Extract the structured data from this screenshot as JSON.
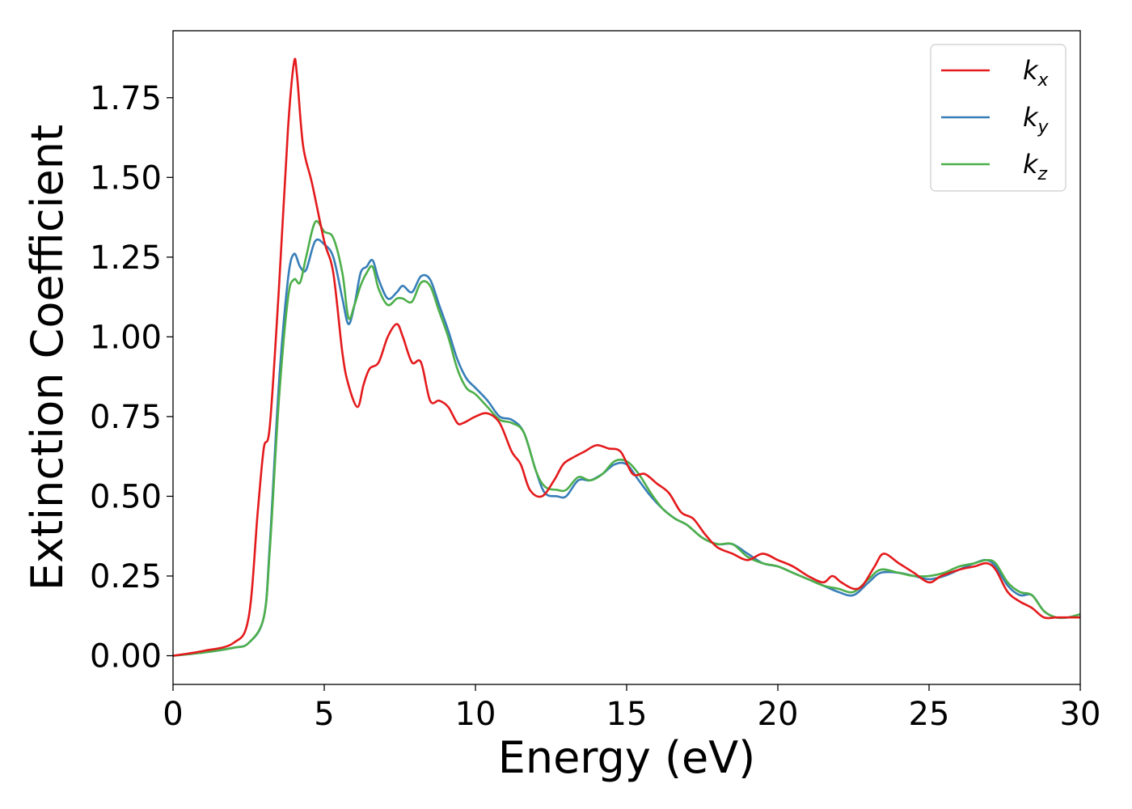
{
  "chart_data": {
    "type": "line",
    "xlabel": "Energy (eV)",
    "ylabel": "Extinction Coefficient",
    "xlim": [
      0,
      30
    ],
    "ylim": [
      -0.09,
      1.96
    ],
    "xticks": [
      0,
      5,
      10,
      15,
      20,
      25,
      30
    ],
    "xtick_labels": [
      "0",
      "5",
      "10",
      "15",
      "20",
      "25",
      "30"
    ],
    "yticks": [
      0.0,
      0.25,
      0.5,
      0.75,
      1.0,
      1.25,
      1.5,
      1.75
    ],
    "ytick_labels": [
      "0.00",
      "0.25",
      "0.50",
      "0.75",
      "1.00",
      "1.25",
      "1.50",
      "1.75"
    ],
    "grid": false,
    "legend_position": "top-right",
    "series": [
      {
        "name": "k_x",
        "label_main": "k",
        "label_sub": "x",
        "color": "#e41a1c",
        "x": [
          0,
          1,
          2,
          2.5,
          2.8,
          3.0,
          3.2,
          3.5,
          3.8,
          4.0,
          4.1,
          4.3,
          4.6,
          5.0,
          5.3,
          5.6,
          5.8,
          6.1,
          6.3,
          6.5,
          6.8,
          7.1,
          7.4,
          7.6,
          7.9,
          8.2,
          8.5,
          8.8,
          9.1,
          9.4,
          9.6,
          10.0,
          10.4,
          10.8,
          11.2,
          11.5,
          11.8,
          12.2,
          12.6,
          12.9,
          13.2,
          13.6,
          14.0,
          14.4,
          14.8,
          15.2,
          15.6,
          16.0,
          16.4,
          16.8,
          17.2,
          17.6,
          18.0,
          18.5,
          19.0,
          19.5,
          20.0,
          20.5,
          21.0,
          21.5,
          21.8,
          22.1,
          22.5,
          22.8,
          23.2,
          23.5,
          24.0,
          24.5,
          25.0,
          25.4,
          26.0,
          26.5,
          26.9,
          27.2,
          27.6,
          28.0,
          28.4,
          28.8,
          29.2,
          29.6,
          30.0
        ],
        "y": [
          0.0,
          0.015,
          0.04,
          0.12,
          0.45,
          0.65,
          0.72,
          1.15,
          1.65,
          1.86,
          1.82,
          1.6,
          1.48,
          1.3,
          1.2,
          0.95,
          0.85,
          0.78,
          0.85,
          0.9,
          0.92,
          1.0,
          1.04,
          1.0,
          0.92,
          0.92,
          0.8,
          0.8,
          0.78,
          0.73,
          0.73,
          0.75,
          0.76,
          0.73,
          0.64,
          0.6,
          0.52,
          0.5,
          0.55,
          0.6,
          0.62,
          0.64,
          0.66,
          0.65,
          0.64,
          0.57,
          0.57,
          0.54,
          0.51,
          0.45,
          0.43,
          0.38,
          0.34,
          0.32,
          0.3,
          0.32,
          0.3,
          0.28,
          0.25,
          0.23,
          0.25,
          0.23,
          0.21,
          0.22,
          0.28,
          0.32,
          0.29,
          0.26,
          0.23,
          0.25,
          0.27,
          0.28,
          0.29,
          0.27,
          0.2,
          0.17,
          0.15,
          0.12,
          0.12,
          0.12,
          0.12
        ]
      },
      {
        "name": "k_y",
        "label_main": "k",
        "label_sub": "y",
        "color": "#377eb8",
        "x": [
          0,
          1,
          2,
          2.5,
          3.0,
          3.2,
          3.5,
          3.8,
          4.0,
          4.2,
          4.4,
          4.7,
          5.0,
          5.3,
          5.6,
          5.8,
          6.0,
          6.2,
          6.4,
          6.6,
          6.8,
          7.1,
          7.4,
          7.6,
          7.9,
          8.2,
          8.5,
          8.8,
          9.1,
          9.4,
          9.7,
          10.0,
          10.4,
          10.8,
          11.2,
          11.6,
          12.0,
          12.3,
          12.7,
          13.0,
          13.4,
          13.8,
          14.2,
          14.6,
          15.0,
          15.4,
          15.8,
          16.2,
          16.6,
          17.0,
          17.5,
          18.0,
          18.5,
          19.0,
          19.5,
          20.0,
          20.5,
          21.0,
          21.5,
          22.0,
          22.5,
          23.0,
          23.4,
          24.0,
          24.5,
          25.0,
          25.5,
          26.0,
          26.5,
          26.9,
          27.2,
          27.6,
          28.0,
          28.4,
          28.8,
          29.2,
          29.6,
          30.0
        ],
        "y": [
          0.0,
          0.01,
          0.025,
          0.04,
          0.12,
          0.35,
          0.85,
          1.18,
          1.26,
          1.22,
          1.21,
          1.3,
          1.29,
          1.25,
          1.12,
          1.04,
          1.1,
          1.2,
          1.22,
          1.24,
          1.18,
          1.12,
          1.14,
          1.16,
          1.14,
          1.19,
          1.18,
          1.1,
          1.02,
          0.93,
          0.87,
          0.84,
          0.8,
          0.75,
          0.74,
          0.7,
          0.58,
          0.51,
          0.5,
          0.5,
          0.55,
          0.55,
          0.57,
          0.6,
          0.6,
          0.55,
          0.5,
          0.46,
          0.43,
          0.41,
          0.37,
          0.35,
          0.35,
          0.32,
          0.29,
          0.28,
          0.26,
          0.24,
          0.22,
          0.2,
          0.19,
          0.23,
          0.26,
          0.26,
          0.25,
          0.24,
          0.25,
          0.27,
          0.29,
          0.3,
          0.28,
          0.22,
          0.19,
          0.19,
          0.14,
          0.12,
          0.12,
          0.13
        ]
      },
      {
        "name": "k_z",
        "label_main": "k",
        "label_sub": "z",
        "color": "#4daf4a",
        "x": [
          0,
          1,
          2,
          2.5,
          3.0,
          3.2,
          3.5,
          3.8,
          4.0,
          4.2,
          4.4,
          4.7,
          5.0,
          5.3,
          5.6,
          5.8,
          6.0,
          6.2,
          6.4,
          6.6,
          6.8,
          7.1,
          7.4,
          7.6,
          7.9,
          8.2,
          8.5,
          8.8,
          9.1,
          9.4,
          9.7,
          10.0,
          10.4,
          10.8,
          11.2,
          11.6,
          12.0,
          12.3,
          12.7,
          13.0,
          13.4,
          13.8,
          14.2,
          14.6,
          15.0,
          15.4,
          15.8,
          16.2,
          16.6,
          17.0,
          17.5,
          18.0,
          18.5,
          19.0,
          19.5,
          20.0,
          20.5,
          21.0,
          21.5,
          22.0,
          22.5,
          23.0,
          23.4,
          24.0,
          24.5,
          25.0,
          25.5,
          26.0,
          26.5,
          26.9,
          27.2,
          27.6,
          28.0,
          28.4,
          28.8,
          29.2,
          29.6,
          30.0
        ],
        "y": [
          0.0,
          0.01,
          0.025,
          0.04,
          0.12,
          0.33,
          0.8,
          1.12,
          1.18,
          1.17,
          1.25,
          1.36,
          1.33,
          1.31,
          1.2,
          1.06,
          1.1,
          1.16,
          1.2,
          1.22,
          1.15,
          1.1,
          1.12,
          1.12,
          1.11,
          1.17,
          1.16,
          1.08,
          1.0,
          0.9,
          0.84,
          0.82,
          0.78,
          0.74,
          0.73,
          0.7,
          0.58,
          0.53,
          0.52,
          0.52,
          0.56,
          0.55,
          0.57,
          0.61,
          0.61,
          0.57,
          0.51,
          0.46,
          0.43,
          0.41,
          0.37,
          0.35,
          0.35,
          0.31,
          0.29,
          0.28,
          0.26,
          0.24,
          0.22,
          0.21,
          0.2,
          0.24,
          0.27,
          0.26,
          0.25,
          0.25,
          0.26,
          0.28,
          0.29,
          0.3,
          0.29,
          0.23,
          0.2,
          0.19,
          0.14,
          0.12,
          0.12,
          0.13
        ]
      }
    ]
  }
}
